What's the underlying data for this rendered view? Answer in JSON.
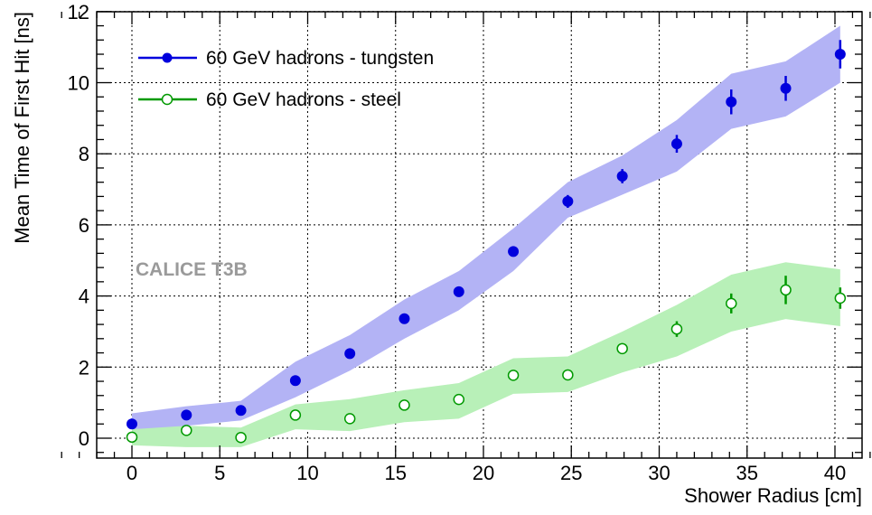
{
  "chart_data": {
    "type": "scatter",
    "xlabel": "Shower Radius [cm]",
    "ylabel": "Mean Time of First Hit [ns]",
    "xlim": [
      -5,
      42
    ],
    "ylim": [
      -0.6,
      12
    ],
    "x_ticks": [
      0,
      5,
      10,
      15,
      20,
      25,
      30,
      35,
      40
    ],
    "y_ticks": [
      0,
      2,
      4,
      6,
      8,
      10,
      12
    ],
    "grid": true,
    "legend_placement": "top-left",
    "annotation": "CALICE T3B",
    "series": [
      {
        "name": "60 GeV hadrons - tungsten",
        "color": "#0000dd",
        "band_color": "#b3b3f5",
        "marker": "filled-circle",
        "points": [
          {
            "x": 0,
            "y": 0.4,
            "err": 0.08
          },
          {
            "x": 3.1,
            "y": 0.65,
            "err": 0.08
          },
          {
            "x": 6.2,
            "y": 0.78,
            "err": 0.08
          },
          {
            "x": 9.3,
            "y": 1.62,
            "err": 0.1
          },
          {
            "x": 12.4,
            "y": 2.38,
            "err": 0.1
          },
          {
            "x": 15.5,
            "y": 3.36,
            "err": 0.1
          },
          {
            "x": 18.6,
            "y": 4.12,
            "err": 0.1
          },
          {
            "x": 21.7,
            "y": 5.25,
            "err": 0.1
          },
          {
            "x": 24.8,
            "y": 6.66,
            "err": 0.18
          },
          {
            "x": 27.9,
            "y": 7.37,
            "err": 0.2
          },
          {
            "x": 31.0,
            "y": 8.28,
            "err": 0.25
          },
          {
            "x": 34.1,
            "y": 9.46,
            "err": 0.35
          },
          {
            "x": 37.2,
            "y": 9.84,
            "err": 0.35
          },
          {
            "x": 40.3,
            "y": 10.8,
            "err": 0.4
          }
        ],
        "band": [
          {
            "x": 0,
            "lo": 0.05,
            "hi": 0.7
          },
          {
            "x": 3.1,
            "lo": 0.35,
            "hi": 0.9
          },
          {
            "x": 6.2,
            "lo": 0.5,
            "hi": 1.05
          },
          {
            "x": 9.3,
            "lo": 1.15,
            "hi": 2.15
          },
          {
            "x": 12.4,
            "lo": 1.9,
            "hi": 2.9
          },
          {
            "x": 15.5,
            "lo": 2.8,
            "hi": 3.9
          },
          {
            "x": 18.6,
            "lo": 3.6,
            "hi": 4.7
          },
          {
            "x": 21.7,
            "lo": 4.7,
            "hi": 5.9
          },
          {
            "x": 24.8,
            "lo": 6.2,
            "hi": 7.2
          },
          {
            "x": 27.9,
            "lo": 6.85,
            "hi": 7.95
          },
          {
            "x": 31.0,
            "lo": 7.5,
            "hi": 8.95
          },
          {
            "x": 34.1,
            "lo": 8.7,
            "hi": 10.25
          },
          {
            "x": 37.2,
            "lo": 9.05,
            "hi": 10.6
          },
          {
            "x": 40.3,
            "lo": 10.0,
            "hi": 11.6
          }
        ]
      },
      {
        "name": "60 GeV hadrons - steel",
        "color": "#009900",
        "band_color": "#b8f0b8",
        "marker": "open-circle",
        "points": [
          {
            "x": 0,
            "y": 0.03,
            "err": 0.05
          },
          {
            "x": 3.1,
            "y": 0.22,
            "err": 0.05
          },
          {
            "x": 6.2,
            "y": 0.02,
            "err": 0.05
          },
          {
            "x": 9.3,
            "y": 0.65,
            "err": 0.06
          },
          {
            "x": 12.4,
            "y": 0.55,
            "err": 0.06
          },
          {
            "x": 15.5,
            "y": 0.93,
            "err": 0.06
          },
          {
            "x": 18.6,
            "y": 1.09,
            "err": 0.06
          },
          {
            "x": 21.7,
            "y": 1.77,
            "err": 0.08
          },
          {
            "x": 24.8,
            "y": 1.78,
            "err": 0.08
          },
          {
            "x": 27.9,
            "y": 2.52,
            "err": 0.15
          },
          {
            "x": 31.0,
            "y": 3.07,
            "err": 0.22
          },
          {
            "x": 34.1,
            "y": 3.79,
            "err": 0.28
          },
          {
            "x": 37.2,
            "y": 4.17,
            "err": 0.4
          },
          {
            "x": 40.3,
            "y": 3.94,
            "err": 0.3
          }
        ],
        "band": [
          {
            "x": 0,
            "lo": -0.2,
            "hi": 0.25
          },
          {
            "x": 3.1,
            "lo": -0.25,
            "hi": 0.35
          },
          {
            "x": 6.2,
            "lo": -0.25,
            "hi": 0.3
          },
          {
            "x": 9.3,
            "lo": 0.25,
            "hi": 0.95
          },
          {
            "x": 12.4,
            "lo": 0.2,
            "hi": 1.1
          },
          {
            "x": 15.5,
            "lo": 0.45,
            "hi": 1.35
          },
          {
            "x": 18.6,
            "lo": 0.55,
            "hi": 1.55
          },
          {
            "x": 21.7,
            "lo": 1.25,
            "hi": 2.25
          },
          {
            "x": 24.8,
            "lo": 1.3,
            "hi": 2.3
          },
          {
            "x": 27.9,
            "lo": 1.85,
            "hi": 3.0
          },
          {
            "x": 31.0,
            "lo": 2.3,
            "hi": 3.75
          },
          {
            "x": 34.1,
            "lo": 3.0,
            "hi": 4.6
          },
          {
            "x": 37.2,
            "lo": 3.35,
            "hi": 4.95
          },
          {
            "x": 40.3,
            "lo": 3.15,
            "hi": 4.75
          }
        ]
      }
    ]
  }
}
